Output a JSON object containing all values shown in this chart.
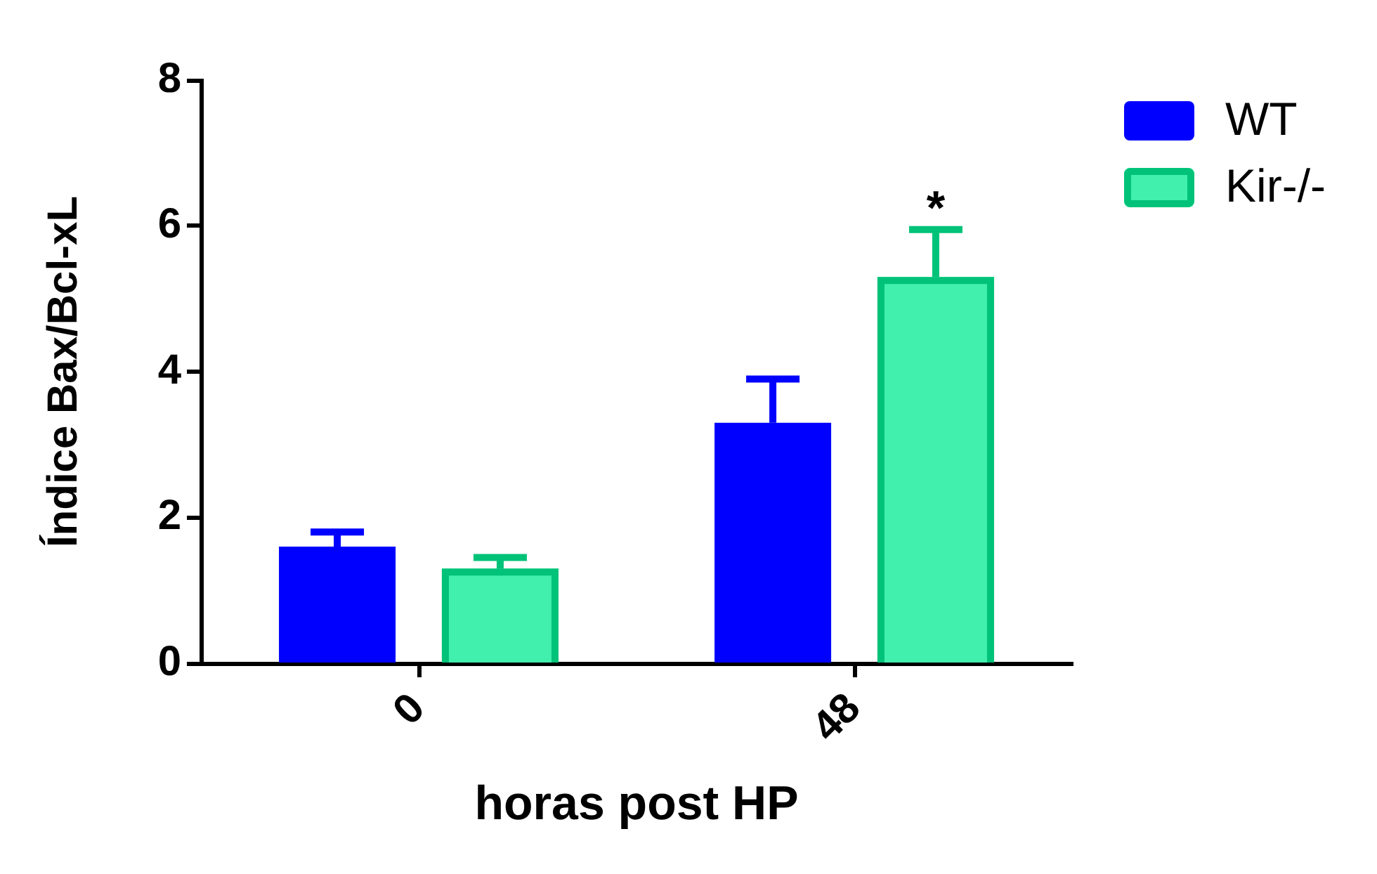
{
  "chart_data": {
    "type": "bar",
    "xlabel": "horas post HP",
    "ylabel": "Índice Bax/Bcl-xL",
    "categories": [
      "0",
      "48"
    ],
    "series": [
      {
        "name": "WT",
        "color": "#0000ff",
        "values": [
          1.6,
          3.3
        ],
        "errors": [
          [
            1.6,
            1.8
          ],
          [
            3.3,
            3.9
          ]
        ]
      },
      {
        "name": "Kir-/-",
        "color": "#42f0ae",
        "values": [
          1.3,
          5.3
        ],
        "errors": [
          [
            1.3,
            1.45
          ],
          [
            5.3,
            5.95
          ]
        ]
      }
    ],
    "ylim": [
      0,
      8
    ],
    "yticks": [
      0,
      2,
      4,
      6,
      8
    ],
    "grid": false,
    "legend": "top right",
    "annotations": [
      "*"
    ]
  }
}
